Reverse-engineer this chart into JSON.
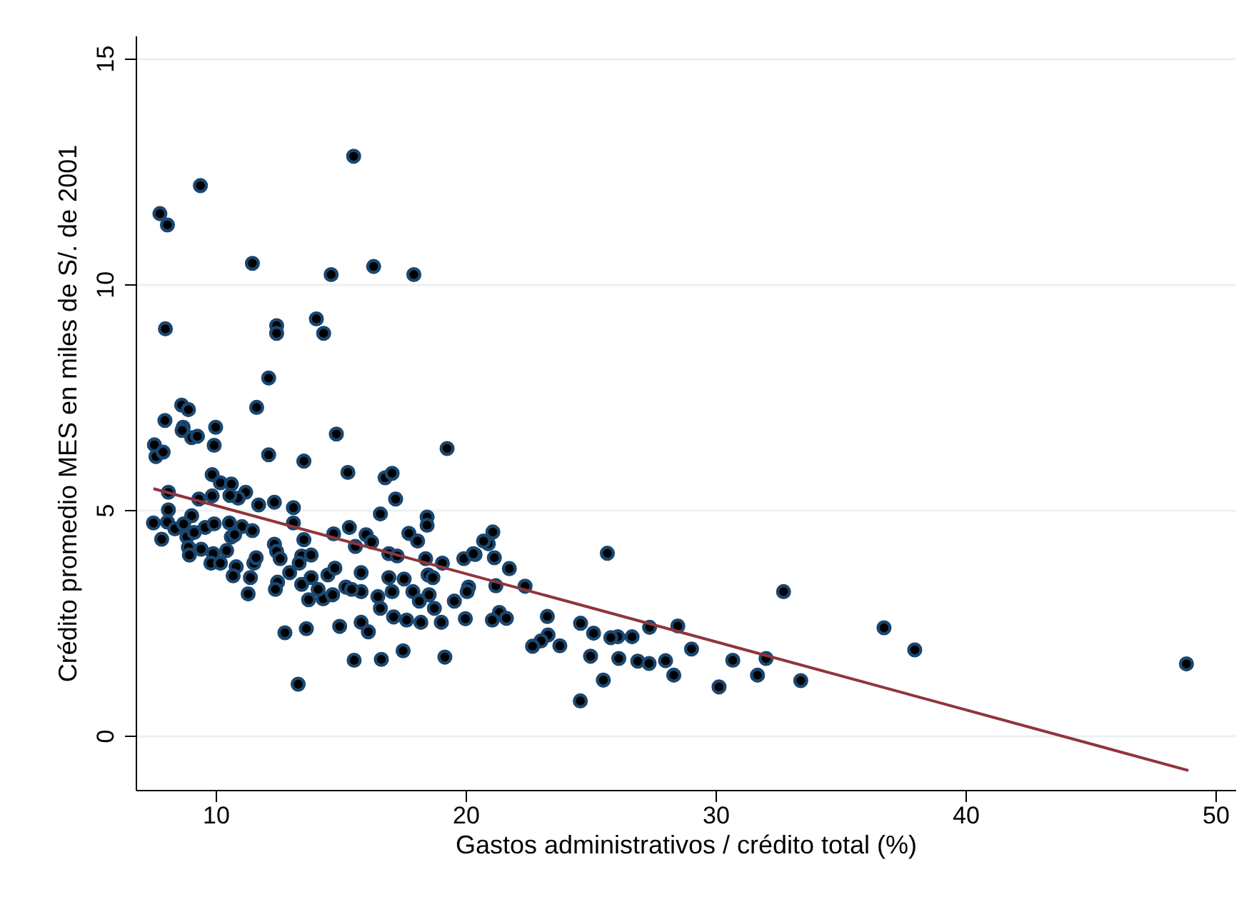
{
  "chart_data": {
    "type": "scatter",
    "xlabel": "Gastos administrativos / crédito total (%)",
    "ylabel": "Crédito promedio MES en miles de S/. de 2001",
    "xlim": [
      6.8,
      50.8
    ],
    "xticks": [
      10,
      20,
      30,
      40,
      50
    ],
    "ylim": [
      -1.2,
      15.5
    ],
    "yticks": [
      0,
      5,
      10,
      15
    ],
    "grid": "y",
    "series": [
      {
        "color": "#1a476f",
        "marker": "circle",
        "x": [
          7.77,
          8.07,
          9.39,
          15.52,
          11.47,
          14.62,
          16.32,
          17.93,
          7.99,
          12.44,
          12.44,
          14.03,
          14.32,
          12.12,
          8.64,
          8.91,
          11.64,
          7.97,
          25.67,
          32.72,
          36.74,
          37.97,
          48.84,
          24.59,
          30.14,
          31.68,
          33.41,
          32.02,
          30.69,
          29.04,
          28.49,
          27.36,
          26.66,
          26.09,
          25.81,
          26.13,
          26.89,
          27.34,
          28.0,
          28.33,
          25.51,
          25.0,
          25.12,
          24.6,
          23.27,
          23.3,
          23.02,
          22.68,
          23.77,
          22.38,
          21.75,
          21.15,
          21.09,
          20.91,
          20.72,
          20.38,
          21.21,
          21.35,
          21.63,
          21.07,
          8.7,
          8.66,
          9.04,
          9.27,
          10.0,
          9.94,
          7.55,
          7.61,
          7.9,
          14.83,
          12.12,
          13.53,
          15.29,
          19.26,
          16.78,
          17.06,
          17.2,
          16.59,
          9.86,
          10.19,
          10.63,
          11.2,
          10.9,
          10.57,
          9.86,
          9.33,
          8.11,
          11.72,
          12.35,
          13.11,
          13.11,
          8.11,
          7.51,
          8.07,
          8.37,
          9.04,
          8.72,
          7.84,
          8.85,
          9.14,
          9.58,
          9.94,
          10.55,
          11.05,
          11.47,
          10.63,
          10.76,
          8.91,
          9.42,
          9.9,
          10.44,
          8.95,
          9.81,
          10.19,
          10.82,
          10.7,
          11.53,
          11.39,
          11.62,
          11.3,
          12.35,
          12.44,
          12.58,
          13.53,
          13.44,
          13.82,
          13.34,
          12.96,
          12.48,
          12.39,
          13.44,
          13.82,
          13.72,
          14.3,
          14.68,
          14.1,
          14.49,
          14.77,
          14.72,
          15.35,
          16.02,
          15.59,
          16.24,
          15.21,
          15.82,
          15.82,
          15.44,
          16.49,
          16.59,
          16.93,
          17.06,
          16.93,
          17.26,
          17.54,
          17.73,
          18.08,
          18.4,
          18.46,
          18.46,
          19.07,
          18.5,
          18.69,
          17.89,
          18.15,
          18.54,
          18.75,
          19.55,
          19.93,
          20.31,
          20.12,
          20.06,
          19.99,
          19.03,
          18.21,
          17.64,
          17.12,
          15.82,
          16.11,
          14.96,
          13.63,
          12.77,
          13.3,
          15.54,
          16.63,
          17.5,
          19.17
        ],
        "values": [
          11.56,
          11.31,
          12.18,
          12.83,
          10.46,
          10.21,
          10.39,
          10.21,
          9.01,
          9.08,
          8.91,
          9.23,
          8.91,
          7.92,
          7.32,
          7.22,
          7.27,
          6.98,
          4.04,
          3.19,
          2.39,
          1.9,
          1.59,
          0.77,
          1.08,
          1.34,
          1.22,
          1.71,
          1.67,
          1.92,
          2.43,
          2.4,
          2.19,
          2.19,
          2.17,
          1.71,
          1.65,
          1.6,
          1.66,
          1.34,
          1.23,
          1.76,
          2.27,
          2.49,
          2.64,
          2.23,
          2.1,
          1.98,
          1.99,
          3.31,
          3.7,
          3.94,
          4.51,
          4.25,
          4.31,
          4.01,
          3.32,
          2.73,
          2.6,
          2.56,
          6.83,
          6.76,
          6.6,
          6.63,
          6.83,
          6.43,
          6.44,
          6.18,
          6.28,
          6.68,
          6.22,
          6.08,
          5.83,
          6.36,
          5.71,
          5.81,
          5.24,
          4.91,
          5.78,
          5.6,
          5.57,
          5.39,
          5.26,
          5.32,
          5.31,
          5.24,
          5.39,
          5.11,
          5.17,
          5.05,
          4.71,
          5.0,
          4.71,
          4.73,
          4.58,
          4.87,
          4.69,
          4.35,
          4.4,
          4.5,
          4.61,
          4.69,
          4.71,
          4.63,
          4.54,
          4.4,
          4.45,
          4.17,
          4.13,
          4.03,
          4.1,
          4.0,
          3.82,
          3.82,
          3.74,
          3.54,
          3.82,
          3.5,
          3.94,
          3.14,
          4.24,
          4.08,
          3.92,
          4.34,
          3.98,
          4.0,
          3.82,
          3.61,
          3.4,
          3.24,
          3.35,
          3.5,
          3.01,
          3.03,
          3.12,
          3.24,
          3.56,
          3.71,
          4.47,
          4.61,
          4.45,
          4.19,
          4.29,
          3.29,
          3.61,
          3.19,
          3.24,
          3.08,
          2.82,
          3.5,
          3.19,
          4.03,
          3.98,
          3.47,
          4.48,
          4.31,
          3.92,
          4.84,
          4.66,
          3.82,
          3.56,
          3.5,
          3.19,
          2.98,
          3.12,
          2.82,
          2.98,
          3.92,
          4.03,
          3.29,
          3.19,
          2.59,
          2.51,
          2.51,
          2.56,
          2.63,
          2.51,
          2.3,
          2.42,
          2.37,
          2.28,
          1.14,
          1.67,
          1.69,
          1.88,
          1.74
        ]
      },
      {
        "type": "line",
        "marker": "none",
        "color": "#90353b",
        "x": [
          7.51,
          48.92
        ],
        "values": [
          5.47,
          -0.77
        ]
      }
    ]
  }
}
